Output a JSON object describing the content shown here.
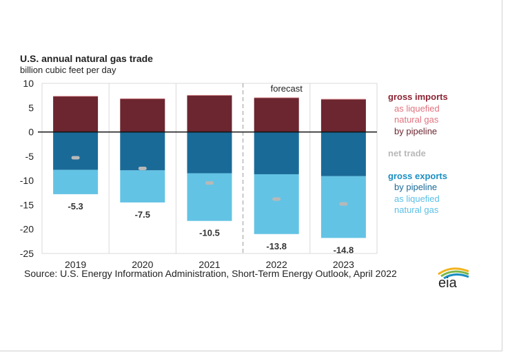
{
  "title": "U.S. annual natural gas trade",
  "subtitle": "billion cubic feet per day",
  "source": "Source: U.S. Energy Information Administration, Short-Term Energy Outlook, April 2022",
  "forecast_label": "forecast",
  "logo_text": "eia",
  "legend": {
    "imports_header": "gross imports",
    "lng_imports_1": "as liquefied",
    "lng_imports_2": "natural gas",
    "pipeline_imports": "by pipeline",
    "net_trade": "net trade",
    "exports_header": "gross exports",
    "pipeline_exports": "by pipeline",
    "lng_exports_1": "as liquefied",
    "lng_exports_2": "natural gas"
  },
  "colors": {
    "imports_pipeline": "#6b2630",
    "imports_lng": "#e98a8f",
    "exports_pipeline": "#1a6a98",
    "exports_lng": "#63c3e4",
    "net_trade": "#b8b8b8",
    "imports_header": "#8b2332",
    "imports_sub": "#e0737f",
    "exports_header": "#1a8fc2",
    "exports_sub": "#5bbfe6"
  },
  "chart_data": {
    "type": "bar",
    "stacked": true,
    "categories": [
      "2019",
      "2020",
      "2021",
      "2022",
      "2023"
    ],
    "forecast_start": "2022",
    "ylim": [
      -25,
      10
    ],
    "yticks": [
      10,
      5,
      0,
      -5,
      -10,
      -15,
      -20,
      -25
    ],
    "grid": true,
    "legend_position": "right",
    "series": [
      {
        "name": "gross imports by pipeline",
        "values": [
          7.3,
          6.8,
          7.5,
          7.0,
          6.7
        ]
      },
      {
        "name": "gross imports as liquefied natural gas",
        "values": [
          0.1,
          0.1,
          0.1,
          0.1,
          0.1
        ]
      },
      {
        "name": "gross exports by pipeline",
        "values": [
          -7.8,
          -7.9,
          -8.5,
          -8.7,
          -9.1
        ]
      },
      {
        "name": "gross exports as liquefied natural gas",
        "values": [
          -5.0,
          -6.6,
          -9.8,
          -12.3,
          -12.7
        ]
      }
    ],
    "net_trade": {
      "name": "net trade",
      "values": [
        -5.3,
        -7.5,
        -10.5,
        -13.8,
        -14.8
      ]
    },
    "net_trade_labels": [
      "-5.3",
      "-7.5",
      "-10.5",
      "-13.8",
      "-14.8"
    ]
  }
}
